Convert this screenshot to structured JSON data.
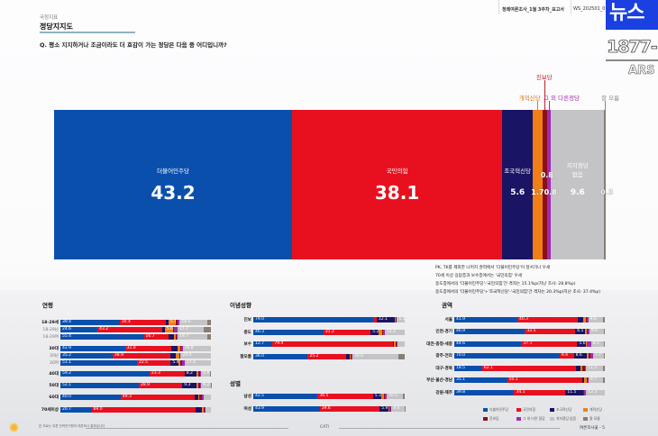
{
  "header": {
    "kicker": "국정지표",
    "title": "정당지지도",
    "question": "Q. 평소 지지하거나 조금이라도 더 호감이 가는 정당은 다음 중 어디입니까?",
    "doc_name": "정례여론조사_1월 3주차_보고서",
    "doc_code": "WS_202501_0"
  },
  "overlay": {
    "logo_text": "뉴스",
    "phone": "1877-",
    "ars": "ARS"
  },
  "colors": {
    "democratic": "#0b4fad",
    "ppp": "#e8101f",
    "rebuilding": "#1a1464",
    "reform": "#f07f16",
    "progressive": "#8b0f1a",
    "other": "#a32ab2",
    "none": "#c4c4c6",
    "dontknow": "#8a7d74"
  },
  "chart_data": {
    "type": "bar",
    "title": "정당지지도",
    "parties": [
      "더불어민주당",
      "국민의힘",
      "조국혁신당",
      "개혁신당",
      "진보당",
      "그 외 다른정당",
      "지지정당 없음",
      "잘 모름"
    ],
    "main": {
      "values": [
        43.2,
        38.1,
        5.6,
        1.7,
        0.8,
        0.8,
        9.6,
        0.3
      ],
      "labels": [
        "더불어민주당",
        "국민의힘",
        "조국혁신당",
        "개혁신당",
        "진보당",
        "그 외 다른정당",
        "지지정당 없음",
        "잘 모름"
      ],
      "display": [
        "43.2",
        "38.1",
        "5.6",
        "1.7",
        "0.8",
        "0.8",
        "9.6",
        "0.3"
      ]
    },
    "panels": [
      {
        "title": "연령",
        "rows": [
          {
            "label": "18-29세",
            "style": "bold",
            "values": [
              39.4,
              30.4,
              2.0,
              5.1,
              0.8,
              1.6,
              18.6,
              2.1
            ],
            "shown": [
              "39.4",
              "30.4",
              "",
              "5.1",
              "",
              "",
              "18.6",
              ""
            ]
          },
          {
            "label": "18-29남",
            "style": "light",
            "values": [
              24.6,
              43.2,
              1.5,
              5.6,
              0.8,
              2.0,
              17.7,
              4.6
            ],
            "shown": [
              "24.6",
              "43.2",
              "",
              "5.6",
              "",
              "",
              "17.7",
              ""
            ]
          },
          {
            "label": "18-29여",
            "style": "light",
            "values": [
              55.4,
              16.7,
              3.5,
              1.0,
              0.5,
              0.8,
              19.7,
              2.4
            ],
            "shown": [
              "55.4",
              "16.7",
              "",
              "",
              "",
              "",
              "19.7",
              ""
            ]
          },
          {
            "label": "30대",
            "style": "bold",
            "values": [
              42.9,
              31.0,
              4.0,
              1.5,
              1.0,
              0.8,
              18.8,
              0.0
            ],
            "shown": [
              "42.9",
              "31.0",
              "",
              "",
              "",
              "",
              "18.8",
              ""
            ]
          },
          {
            "label": "30남",
            "style": "light",
            "values": [
              35.2,
              38.9,
              3.5,
              2.5,
              0.5,
              0.5,
              20.4,
              0.0
            ],
            "shown": [
              "35.2",
              "38.9",
              "",
              "",
              "",
              "",
              "20.4",
              ""
            ]
          },
          {
            "label": "30여",
            "style": "light",
            "values": [
              51.1,
              22.5,
              5.4,
              1.0,
              1.0,
              2.0,
              17.4,
              0.0
            ],
            "shown": [
              "51.1",
              "22.5",
              "5.4",
              "",
              "",
              "",
              "17.4",
              ""
            ]
          },
          {
            "label": "40대",
            "style": "bold",
            "values": [
              59.2,
              23.3,
              8.2,
              1.0,
              1.0,
              0.8,
              5.9,
              0.6
            ],
            "shown": [
              "59.2",
              "23.3",
              "8.2",
              "",
              "",
              "",
              "5.9",
              ""
            ]
          },
          {
            "label": "50대",
            "style": "bold",
            "values": [
              52.1,
              28.9,
              9.3,
              1.5,
              0.8,
              1.0,
              6.2,
              0.2
            ],
            "shown": [
              "52.1",
              "28.9",
              "9.3",
              "",
              "",
              "",
              "6.2",
              ""
            ]
          },
          {
            "label": "60대",
            "style": "bold",
            "values": [
              40.0,
              49.3,
              2.5,
              0.5,
              2.0,
              1.0,
              4.7,
              0.0
            ],
            "shown": [
              "40.0",
              "49.3",
              "",
              "",
              "",
              "",
              "",
              ""
            ]
          },
          {
            "label": "70세이상",
            "style": "bold",
            "values": [
              20.7,
              69.0,
              4.5,
              1.0,
              0.5,
              0.5,
              3.8,
              0.0
            ],
            "shown": [
              "20.7",
              "69.0",
              "",
              "",
              "",
              "",
              "",
              ""
            ]
          }
        ]
      },
      {
        "title": "이념성향",
        "rows": [
          {
            "label": "진보",
            "style": "bold",
            "values": [
              79.0,
              2.5,
              12.1,
              0.5,
              0.5,
              0.3,
              5.1,
              0.0
            ],
            "shown": [
              "79.0",
              "",
              "12.1",
              "",
              "",
              "",
              "5.1",
              ""
            ]
          },
          {
            "label": "중도",
            "style": "bold",
            "values": [
              46.3,
              31.2,
              5.2,
              2.3,
              0.8,
              1.0,
              13.2,
              0.0
            ],
            "shown": [
              "46.3",
              "31.2",
              "5.2",
              "",
              "",
              "",
              "13.2",
              ""
            ]
          },
          {
            "label": "보수",
            "style": "bold",
            "values": [
              12.7,
              79.4,
              1.0,
              1.0,
              0.5,
              0.5,
              4.9,
              0.0
            ],
            "shown": [
              "12.7",
              "79.4",
              "",
              "",
              "",
              "",
              "",
              ""
            ]
          },
          {
            "label": "잘모름",
            "style": "bold",
            "values": [
              36.0,
              25.2,
              2.5,
              0.5,
              0.5,
              0.8,
              30.6,
              3.9
            ],
            "shown": [
              "36.0",
              "25.2",
              "",
              "",
              "",
              "",
              "30.6",
              ""
            ]
          }
        ]
      },
      {
        "title": "성별",
        "rows": [
          {
            "label": "남성",
            "style": "bold",
            "values": [
              42.5,
              36.5,
              5.3,
              2.0,
              0.8,
              1.0,
              10.5,
              1.4
            ],
            "shown": [
              "42.5",
              "36.5",
              "5.3",
              "",
              "",
              "",
              "10.5",
              ""
            ]
          },
          {
            "label": "여성",
            "style": "bold",
            "values": [
              43.9,
              39.6,
              5.9,
              0.3,
              0.8,
              0.8,
              8.6,
              0.1
            ],
            "shown": [
              "43.9",
              "39.6",
              "5.9",
              "",
              "",
              "",
              "8.6",
              ""
            ]
          }
        ]
      },
      {
        "title": "권역",
        "rows": [
          {
            "label": "서울",
            "style": "bold",
            "values": [
              41.9,
              40.3,
              3.5,
              1.5,
              1.0,
              0.8,
              9.6,
              1.4
            ],
            "shown": [
              "41.9",
              "40.3",
              "",
              "",
              "",
              "",
              "9.6",
              ""
            ]
          },
          {
            "label": "인천·경기",
            "style": "bold",
            "values": [
              46.9,
              33.5,
              6.5,
              1.0,
              1.0,
              0.8,
              9.6,
              0.7
            ],
            "shown": [
              "46.9",
              "33.5",
              "6.5",
              "",
              "",
              "",
              "9.6",
              ""
            ]
          },
          {
            "label": "대전·충청·세종",
            "style": "bold",
            "values": [
              44.6,
              37.1,
              5.6,
              0.5,
              0.5,
              2.5,
              8.5,
              0.7
            ],
            "shown": [
              "44.6",
              "37.1",
              "5.6",
              "",
              "",
              "",
              "8.5",
              ""
            ]
          },
          {
            "label": "광주·전라",
            "style": "bold",
            "values": [
              70.0,
              9.4,
              8.6,
              1.0,
              1.5,
              1.5,
              7.7,
              0.3
            ],
            "shown": [
              "70.0",
              "9.4",
              "8.6",
              "",
              "",
              "",
              "7.7",
              ""
            ]
          },
          {
            "label": "대구·경북",
            "style": "bold",
            "values": [
              18.5,
              62.1,
              3.5,
              1.0,
              2.0,
              0.5,
              11.2,
              1.2
            ],
            "shown": [
              "18.5",
              "62.1",
              "",
              "",
              "",
              "",
              "11.2",
              ""
            ]
          },
          {
            "label": "부산·울산·경남",
            "style": "bold",
            "values": [
              35.1,
              50.1,
              1.0,
              2.0,
              0.5,
              0.5,
              9.7,
              1.1
            ],
            "shown": [
              "35.1",
              "50.1",
              "",
              "",
              "",
              "",
              "9.7",
              ""
            ]
          },
          {
            "label": "강원·제주",
            "style": "bold",
            "values": [
              39.8,
              34.1,
              11.5,
              0.3,
              0.5,
              1.5,
              12.3,
              0.0
            ],
            "shown": [
              "39.8",
              "34.1",
              "11.5",
              "",
              "",
              "",
              "12.3",
              ""
            ]
          }
        ]
      }
    ],
    "legend": [
      "더불어민주당",
      "국민의힘",
      "조국혁신당",
      "개혁신당",
      "진보당",
      "그 외 다른 정당",
      "지지정당 없음",
      "잘 모름"
    ]
  },
  "notes": [
    "PK, TK를 제외한 나머지 권역에서 '더불어민주당'이 앞서거나 우세",
    "70세 이상 응답층과 보수층에서는 '국민의힘' 우세",
    "중도층에서의 '더불어민주당'-'국민의힘'간 격차는 15.1%p(지난 조사: 28.8%p)",
    "중도층에서의 '더불어민주당'+'조국혁신당'-'국민의힘'간 격차는 20.3%p(지난 조사: 37.4%p)"
  ],
  "footer": {
    "method": "CATI",
    "small_note": "본 자료는 여론 전략연구원의 여론조사 결과입니다",
    "page": "여론조사꽃 - 5"
  }
}
